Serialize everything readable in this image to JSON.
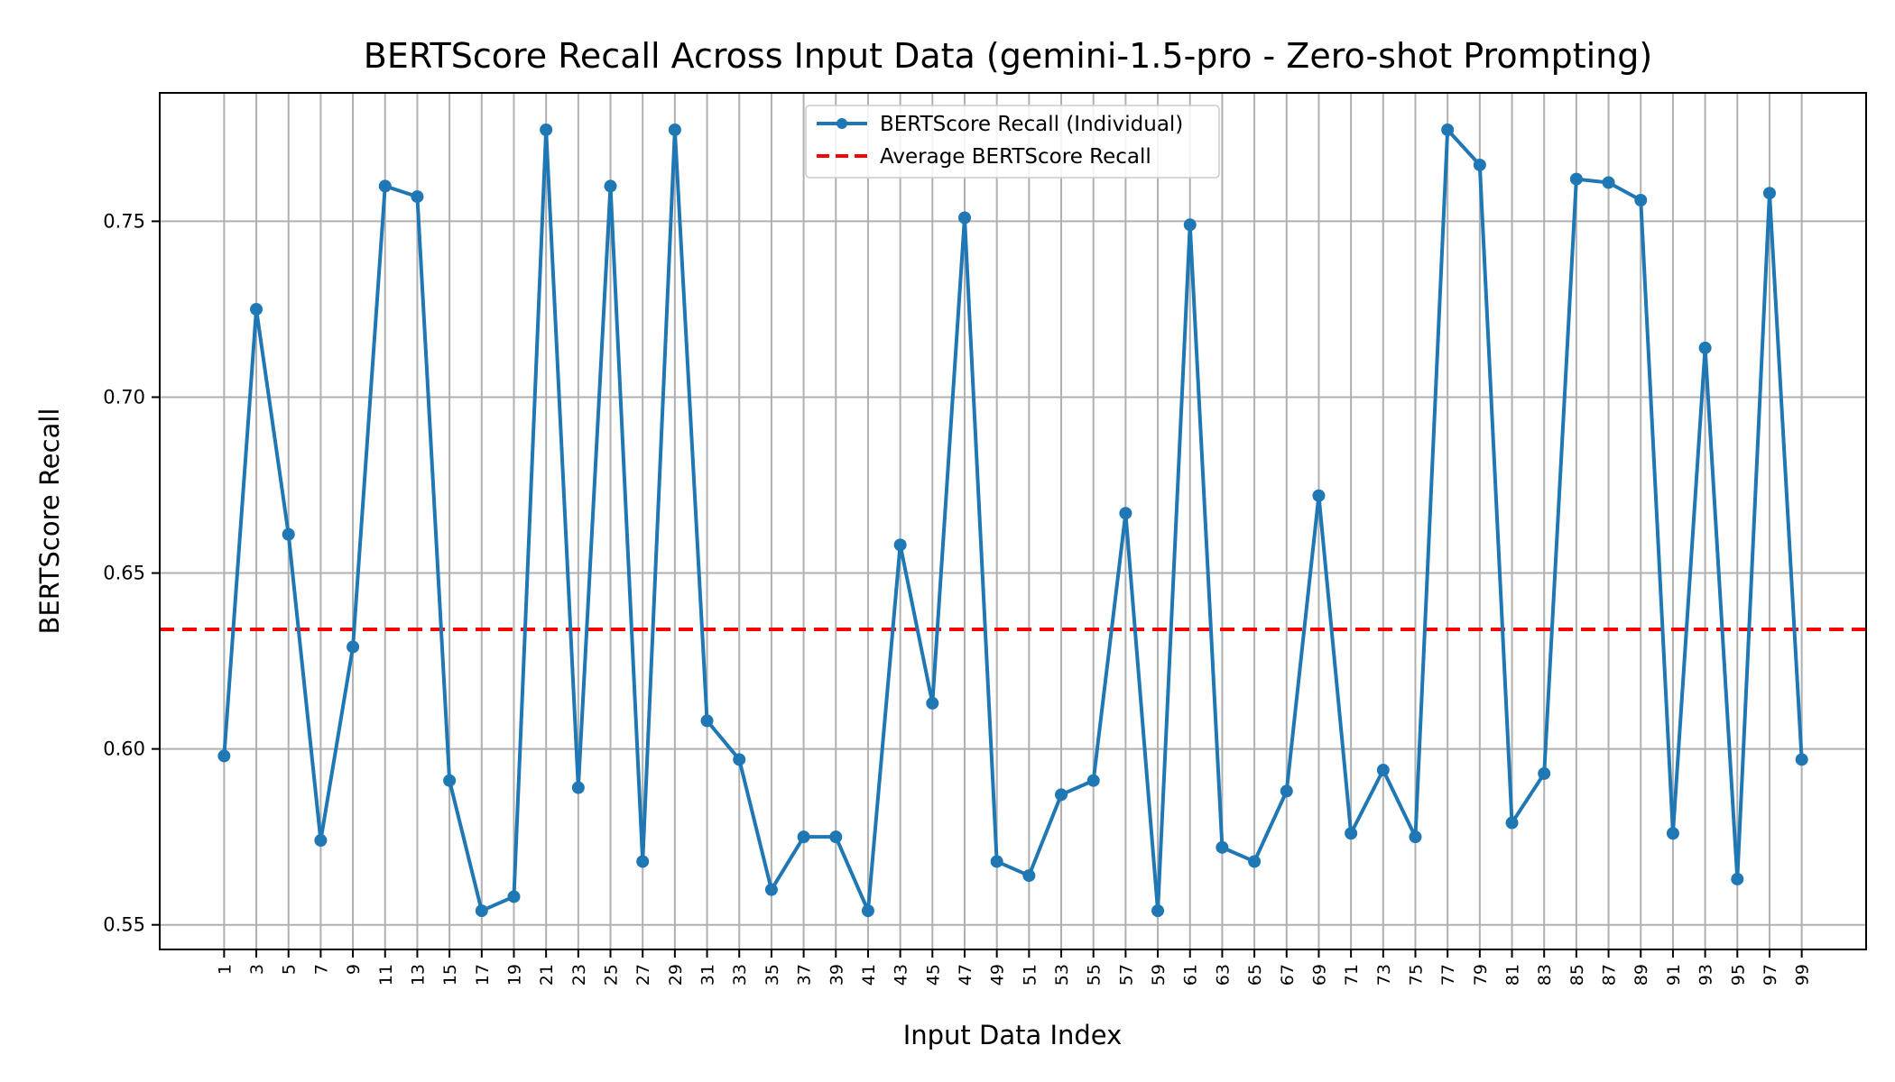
{
  "chart_data": {
    "type": "line",
    "title": "BERTScore Recall Across Input Data (gemini-1.5-pro - Zero-shot Prompting)",
    "xlabel": "Input Data Index",
    "ylabel": "BERTScore Recall",
    "x": [
      1,
      3,
      5,
      7,
      9,
      11,
      13,
      15,
      17,
      19,
      21,
      23,
      25,
      27,
      29,
      31,
      33,
      35,
      37,
      39,
      41,
      43,
      45,
      47,
      49,
      51,
      53,
      55,
      57,
      59,
      61,
      63,
      65,
      67,
      69,
      71,
      73,
      75,
      77,
      79,
      81,
      83,
      85,
      87,
      89,
      91,
      93,
      95,
      97,
      99
    ],
    "x_tick_labels": [
      "1",
      "3",
      "5",
      "7",
      "9",
      "11",
      "13",
      "15",
      "17",
      "19",
      "21",
      "23",
      "25",
      "27",
      "29",
      "31",
      "33",
      "35",
      "37",
      "39",
      "41",
      "43",
      "45",
      "47",
      "49",
      "51",
      "53",
      "55",
      "57",
      "59",
      "61",
      "63",
      "65",
      "67",
      "69",
      "71",
      "73",
      "75",
      "77",
      "79",
      "81",
      "83",
      "85",
      "87",
      "89",
      "91",
      "93",
      "95",
      "97",
      "99"
    ],
    "xlim": [
      -3,
      103
    ],
    "ylim": [
      0.543,
      0.7865
    ],
    "y_ticks": [
      0.55,
      0.6,
      0.65,
      0.7,
      0.75
    ],
    "y_tick_labels": [
      "0.55",
      "0.60",
      "0.65",
      "0.70",
      "0.75"
    ],
    "grid": true,
    "legend_position": "top-center",
    "series": [
      {
        "name": "BERTScore Recall (Individual)",
        "color": "#1f77b4",
        "style": "solid-with-markers",
        "values": [
          0.598,
          0.725,
          0.661,
          0.574,
          0.629,
          0.76,
          0.757,
          0.591,
          0.554,
          0.558,
          0.776,
          0.589,
          0.76,
          0.568,
          0.776,
          0.608,
          0.597,
          0.56,
          0.575,
          0.575,
          0.554,
          0.658,
          0.613,
          0.751,
          0.568,
          0.564,
          0.587,
          0.591,
          0.667,
          0.554,
          0.749,
          0.572,
          0.568,
          0.588,
          0.672,
          0.576,
          0.594,
          0.575,
          0.776,
          0.766,
          0.579,
          0.593,
          0.762,
          0.761,
          0.756,
          0.576,
          0.714,
          0.563,
          0.758,
          0.597
        ]
      },
      {
        "name": "Average BERTScore Recall",
        "color": "#ff0000",
        "style": "dashed",
        "value": 0.634
      }
    ]
  }
}
